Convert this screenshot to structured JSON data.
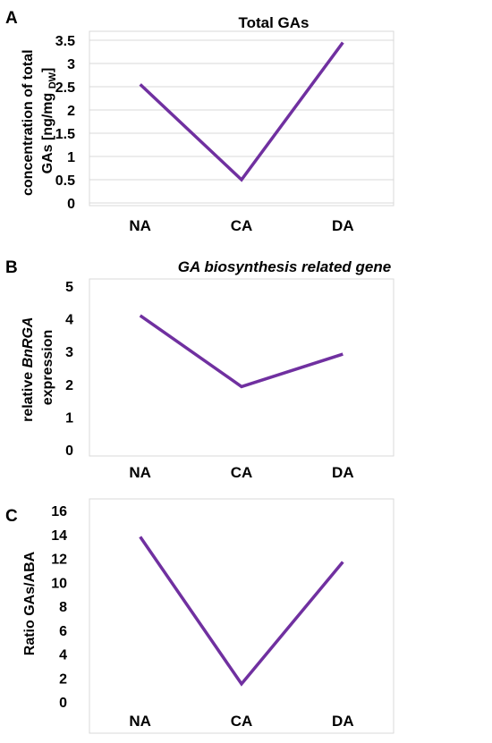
{
  "chart_data": [
    {
      "type": "line",
      "panel_label": "A",
      "title": "Total GAs",
      "title_italic": false,
      "ylabel_lines": [
        "concentration of total",
        "GAs [ng/mg "
      ],
      "ylabel_subscript": "DW",
      "ylabel_suffix": "]",
      "categories": [
        "NA",
        "CA",
        "DA"
      ],
      "values": [
        2.55,
        0.5,
        3.45
      ],
      "ylim": [
        0,
        3.5
      ],
      "yticks": [
        0,
        0.5,
        1,
        1.5,
        2,
        2.5,
        3,
        3.5
      ],
      "ytick_labels": [
        "0",
        "0.5",
        "1",
        "1.5",
        "2",
        "2.5",
        "3",
        "3.5"
      ],
      "grid": true,
      "color": "#7030a0"
    },
    {
      "type": "line",
      "panel_label": "B",
      "title": "GA biosynthesis related gene",
      "title_italic": true,
      "ylabel_line1_prefix": "relative ",
      "ylabel_line1_italic": "BnRGA",
      "ylabel_line2": "expression",
      "categories": [
        "NA",
        "CA",
        "DA"
      ],
      "values": [
        4.1,
        1.93,
        2.92
      ],
      "ylim": [
        0,
        5
      ],
      "yticks": [
        0,
        1,
        2,
        3,
        4,
        5
      ],
      "ytick_labels": [
        "0",
        "1",
        "2",
        "3",
        "4",
        "5"
      ],
      "grid": false,
      "color": "#7030a0"
    },
    {
      "type": "line",
      "panel_label": "C",
      "title": "",
      "ylabel": "Ratio GAs/ABA",
      "categories": [
        "NA",
        "CA",
        "DA"
      ],
      "values": [
        13.8,
        1.5,
        11.7
      ],
      "ylim": [
        0,
        16
      ],
      "yticks": [
        0,
        2,
        4,
        6,
        8,
        10,
        12,
        14,
        16
      ],
      "ytick_labels": [
        "0",
        "2",
        "4",
        "6",
        "8",
        "10",
        "12",
        "14",
        "16"
      ],
      "grid": false,
      "color": "#7030a0"
    }
  ]
}
